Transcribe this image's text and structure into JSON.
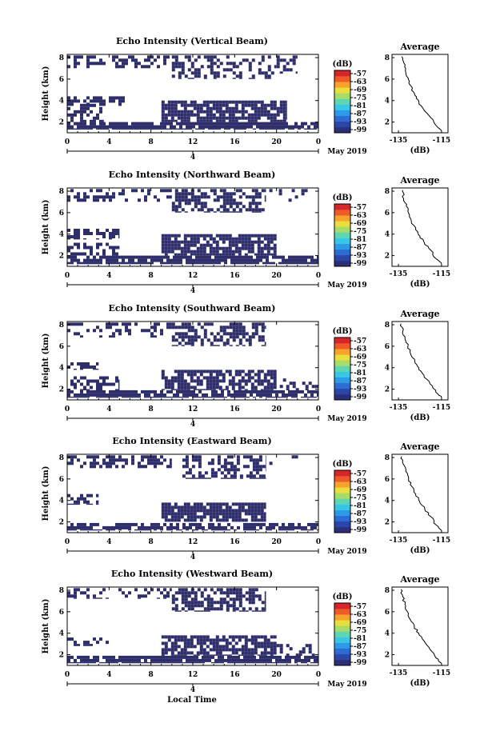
{
  "colors": {
    "echo": "#2e2e6b",
    "colorbar": [
      "#2b2f78",
      "#2c46a8",
      "#2c6cd4",
      "#2d9ae8",
      "#38c6e6",
      "#5fd6b2",
      "#a6dc6a",
      "#e9de3c",
      "#f7a22c",
      "#ee5a28",
      "#d6262a"
    ]
  },
  "footer": {
    "xlabel": "Local Time"
  },
  "chart_data": [
    {
      "type": "heatmap",
      "title": "Echo Intensity (Vertical Beam)",
      "ylabel": "Height (km)",
      "yticks": [
        "2",
        "4",
        "6",
        "8"
      ],
      "xticks": [
        "0",
        "4",
        "8",
        "12",
        "16",
        "20",
        "0"
      ],
      "date_label": "May 2019",
      "date_tick": "4",
      "colorbar": {
        "unit": "(dB)",
        "ticks": [
          "-57",
          "-63",
          "-69",
          "-75",
          "-81",
          "-87",
          "-93",
          "-99"
        ]
      },
      "cloud_layers": [
        {
          "t0": 0,
          "t1": 24,
          "h0": 1.3,
          "h1": 2.0,
          "d": 0.85
        },
        {
          "t0": 0,
          "t1": 3.5,
          "h0": 2.0,
          "h1": 3.7,
          "d": 0.5
        },
        {
          "t0": 0,
          "t1": 5.5,
          "h0": 3.5,
          "h1": 4.4,
          "d": 0.65
        },
        {
          "t0": 9,
          "t1": 21,
          "h0": 2.0,
          "h1": 4.0,
          "d": 0.8
        },
        {
          "t0": 0,
          "t1": 10,
          "h0": 7.0,
          "h1": 8.2,
          "d": 0.45
        },
        {
          "t0": 10,
          "t1": 20,
          "h0": 6.0,
          "h1": 8.2,
          "d": 0.4
        },
        {
          "t0": 20,
          "t1": 22,
          "h0": 6.5,
          "h1": 8.2,
          "d": 0.35
        }
      ],
      "average": {
        "title": "Average",
        "xlabel": "(dB)",
        "xticks": [
          "-135",
          "-115"
        ],
        "yticks": [
          "2",
          "4",
          "6",
          "8"
        ],
        "x": [
          -133.5,
          -132.5,
          -131.8,
          -130.5,
          -129.8,
          -128.0,
          -126.7,
          -124.4,
          -120.8,
          -118.0,
          -115.0
        ],
        "y": [
          8.1,
          7.5,
          6.8,
          6.1,
          5.5,
          4.8,
          4.2,
          3.5,
          2.6,
          1.8,
          1.2
        ]
      }
    },
    {
      "type": "heatmap",
      "title": "Echo Intensity (Northward Beam)",
      "ylabel": "Height (km)",
      "yticks": [
        "2",
        "4",
        "6",
        "8"
      ],
      "xticks": [
        "0",
        "4",
        "8",
        "12",
        "16",
        "20",
        "0"
      ],
      "date_label": "May 2019",
      "date_tick": "4",
      "colorbar": {
        "unit": "(dB)",
        "ticks": [
          "-57",
          "-63",
          "-69",
          "-75",
          "-81",
          "-87",
          "-93",
          "-99"
        ]
      },
      "cloud_layers": [
        {
          "t0": 0,
          "t1": 24,
          "h0": 1.2,
          "h1": 2.0,
          "d": 0.85
        },
        {
          "t0": 0,
          "t1": 5,
          "h0": 2.0,
          "h1": 3.2,
          "d": 0.6
        },
        {
          "t0": 0,
          "t1": 5,
          "h0": 3.5,
          "h1": 4.5,
          "d": 0.55
        },
        {
          "t0": 9,
          "t1": 20,
          "h0": 2.0,
          "h1": 4.0,
          "d": 0.8
        },
        {
          "t0": 0,
          "t1": 10,
          "h0": 7.0,
          "h1": 8.2,
          "d": 0.4
        },
        {
          "t0": 10,
          "t1": 19,
          "h0": 6.0,
          "h1": 8.2,
          "d": 0.55
        },
        {
          "t0": 19,
          "t1": 24,
          "h0": 7.0,
          "h1": 8.2,
          "d": 0.1
        }
      ],
      "average": {
        "title": "Average",
        "xlabel": "(dB)",
        "xticks": [
          "-135",
          "-115"
        ],
        "yticks": [
          "2",
          "4",
          "6",
          "8"
        ],
        "x": [
          -133.2,
          -132.6,
          -131.4,
          -130.4,
          -129.0,
          -127.0,
          -125.0,
          -123.0,
          -120.0,
          -117.5,
          -115.0
        ],
        "y": [
          8.1,
          7.3,
          6.6,
          6.0,
          5.2,
          4.4,
          3.8,
          3.2,
          2.5,
          1.7,
          1.2
        ]
      }
    },
    {
      "type": "heatmap",
      "title": "Echo Intensity (Southward Beam)",
      "ylabel": "Height (km)",
      "yticks": [
        "2",
        "4",
        "6",
        "8"
      ],
      "xticks": [
        "0",
        "4",
        "8",
        "12",
        "16",
        "20",
        "0"
      ],
      "date_label": "May 2019",
      "date_tick": "4",
      "colorbar": {
        "unit": "(dB)",
        "ticks": [
          "-57",
          "-63",
          "-69",
          "-75",
          "-81",
          "-87",
          "-93",
          "-99"
        ]
      },
      "cloud_layers": [
        {
          "t0": 0,
          "t1": 24,
          "h0": 1.2,
          "h1": 1.9,
          "d": 0.85
        },
        {
          "t0": 0,
          "t1": 5,
          "h0": 1.9,
          "h1": 3.2,
          "d": 0.55
        },
        {
          "t0": 0,
          "t1": 3,
          "h0": 3.8,
          "h1": 4.5,
          "d": 0.6
        },
        {
          "t0": 9,
          "t1": 20,
          "h0": 1.9,
          "h1": 3.8,
          "d": 0.75
        },
        {
          "t0": 20,
          "t1": 24,
          "h0": 1.9,
          "h1": 3.0,
          "d": 0.25
        },
        {
          "t0": 0,
          "t1": 10,
          "h0": 6.8,
          "h1": 8.2,
          "d": 0.35
        },
        {
          "t0": 10,
          "t1": 19,
          "h0": 6.0,
          "h1": 8.2,
          "d": 0.5
        }
      ],
      "average": {
        "title": "Average",
        "xlabel": "(dB)",
        "xticks": [
          "-135",
          "-115"
        ],
        "yticks": [
          "2",
          "4",
          "6",
          "8"
        ],
        "x": [
          -133.8,
          -133.0,
          -132.0,
          -130.6,
          -129.4,
          -127.4,
          -125.6,
          -123.2,
          -120.4,
          -117.6,
          -115.0
        ],
        "y": [
          8.1,
          7.4,
          6.7,
          6.0,
          5.3,
          4.6,
          4.0,
          3.3,
          2.5,
          1.7,
          1.2
        ]
      }
    },
    {
      "type": "heatmap",
      "title": "Echo Intensity (Eastward Beam)",
      "ylabel": "Height (km)",
      "yticks": [
        "2",
        "4",
        "6",
        "8"
      ],
      "xticks": [
        "0",
        "4",
        "8",
        "12",
        "16",
        "20",
        "0"
      ],
      "date_label": "May 2019",
      "date_tick": "4",
      "colorbar": {
        "unit": "(dB)",
        "ticks": [
          "-57",
          "-63",
          "-69",
          "-75",
          "-81",
          "-87",
          "-93",
          "-99"
        ]
      },
      "cloud_layers": [
        {
          "t0": 0,
          "t1": 24,
          "h0": 1.2,
          "h1": 1.9,
          "d": 0.7
        },
        {
          "t0": 0,
          "t1": 3,
          "h0": 3.6,
          "h1": 4.6,
          "d": 0.6
        },
        {
          "t0": 9,
          "t1": 19,
          "h0": 2.0,
          "h1": 3.8,
          "d": 0.85
        },
        {
          "t0": 0,
          "t1": 10,
          "h0": 7.0,
          "h1": 8.2,
          "d": 0.45
        },
        {
          "t0": 11,
          "t1": 19,
          "h0": 6.0,
          "h1": 8.2,
          "d": 0.55
        },
        {
          "t0": 19,
          "t1": 24,
          "h0": 7.0,
          "h1": 8.2,
          "d": 0.1
        }
      ],
      "average": {
        "title": "Average",
        "xlabel": "(dB)",
        "xticks": [
          "-135",
          "-115"
        ],
        "yticks": [
          "2",
          "4",
          "6",
          "8"
        ],
        "x": [
          -133.5,
          -132.8,
          -131.6,
          -130.3,
          -128.8,
          -127.0,
          -125.2,
          -122.8,
          -120.0,
          -117.4,
          -115.0
        ],
        "y": [
          8.1,
          7.4,
          6.7,
          6.0,
          5.3,
          4.6,
          3.9,
          3.2,
          2.5,
          1.7,
          1.2
        ]
      }
    },
    {
      "type": "heatmap",
      "title": "Echo Intensity (Westward Beam)",
      "ylabel": "Height (km)",
      "yticks": [
        "2",
        "4",
        "6",
        "8"
      ],
      "xticks": [
        "0",
        "4",
        "8",
        "12",
        "16",
        "20",
        "0"
      ],
      "date_label": "May 2019",
      "date_tick": "4",
      "colorbar": {
        "unit": "(dB)",
        "ticks": [
          "-57",
          "-63",
          "-69",
          "-75",
          "-81",
          "-87",
          "-93",
          "-99"
        ]
      },
      "cloud_layers": [
        {
          "t0": 0,
          "t1": 24,
          "h0": 1.2,
          "h1": 1.9,
          "d": 0.85
        },
        {
          "t0": 0,
          "t1": 4,
          "h0": 2.8,
          "h1": 3.6,
          "d": 0.35
        },
        {
          "t0": 9,
          "t1": 20,
          "h0": 1.9,
          "h1": 3.8,
          "d": 0.75
        },
        {
          "t0": 20,
          "t1": 24,
          "h0": 1.9,
          "h1": 3.0,
          "d": 0.3
        },
        {
          "t0": 0,
          "t1": 10,
          "h0": 7.2,
          "h1": 8.2,
          "d": 0.35
        },
        {
          "t0": 10,
          "t1": 19,
          "h0": 6.0,
          "h1": 8.2,
          "d": 0.6
        }
      ],
      "average": {
        "title": "Average",
        "xlabel": "(dB)",
        "xticks": [
          "-135",
          "-115"
        ],
        "yticks": [
          "2",
          "4",
          "6",
          "8"
        ],
        "x": [
          -133.8,
          -133.0,
          -132.0,
          -130.8,
          -129.6,
          -127.6,
          -125.6,
          -123.2,
          -120.4,
          -117.6,
          -115.0
        ],
        "y": [
          8.1,
          7.4,
          6.7,
          6.0,
          5.3,
          4.6,
          4.0,
          3.3,
          2.5,
          1.7,
          1.2
        ]
      }
    }
  ]
}
